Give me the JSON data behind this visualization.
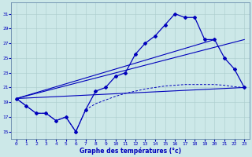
{
  "xlabel": "Graphe des températures (°c)",
  "background_color": "#cce8e8",
  "line_color": "#0000bb",
  "xlim": [
    -0.5,
    23.5
  ],
  "ylim": [
    14.0,
    32.5
  ],
  "yticks": [
    15,
    17,
    19,
    21,
    23,
    25,
    27,
    29,
    31
  ],
  "xticks": [
    0,
    1,
    2,
    3,
    4,
    5,
    6,
    7,
    8,
    9,
    10,
    11,
    12,
    13,
    14,
    15,
    16,
    17,
    18,
    19,
    20,
    21,
    22,
    23
  ],
  "main_x": [
    0,
    1,
    2,
    3,
    4,
    5,
    6,
    7,
    8,
    9,
    10,
    11,
    12,
    13,
    14,
    15,
    16,
    17,
    18,
    19,
    20,
    21,
    22,
    23
  ],
  "main_y": [
    19.5,
    18.5,
    17.5,
    17.5,
    16.5,
    17.0,
    15.0,
    18.0,
    20.5,
    21.0,
    22.5,
    23.0,
    25.5,
    27.0,
    28.0,
    29.5,
    31.0,
    30.5,
    30.5,
    27.5,
    27.5,
    25.0,
    23.5,
    21.0
  ],
  "trend1_x": [
    0,
    20
  ],
  "trend1_y": [
    19.5,
    27.5
  ],
  "trend2_x": [
    0,
    23
  ],
  "trend2_y": [
    19.5,
    21.0
  ],
  "trend3_x": [
    0,
    23
  ],
  "trend3_y": [
    19.5,
    27.5
  ],
  "dashed_x": [
    0,
    1,
    2,
    3,
    4,
    5,
    6,
    7,
    8,
    9,
    10,
    11,
    12,
    13,
    14,
    15,
    16,
    17,
    18,
    19,
    20,
    21,
    22,
    23
  ],
  "dashed_y": [
    19.5,
    18.5,
    17.5,
    17.5,
    16.5,
    17.0,
    15.0,
    18.0,
    18.8,
    19.3,
    19.8,
    20.2,
    20.5,
    20.8,
    21.0,
    21.2,
    21.3,
    21.4,
    21.4,
    21.4,
    21.4,
    21.3,
    21.1,
    21.0
  ]
}
